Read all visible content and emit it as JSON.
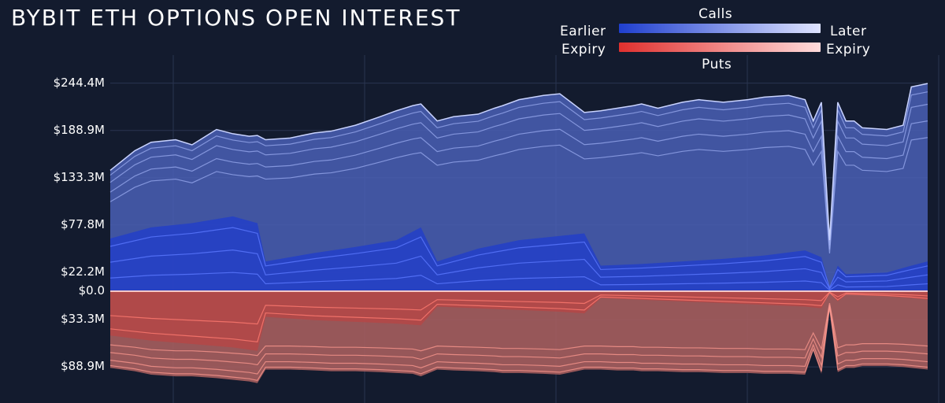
{
  "title": "BYBIT ETH OPTIONS OPEN INTEREST",
  "colors": {
    "background": "#131b2e",
    "calls_dark": "#1f3fcf",
    "calls_light": "#dfe4ff",
    "puts_dark": "#e0302e",
    "puts_light": "#ffdcdc"
  },
  "legend": {
    "calls_label": "Calls",
    "puts_label": "Puts",
    "earlier_label": "Earlier",
    "expiry_left_label": "Expiry",
    "later_label": "Later",
    "expiry_right_label": "Expiry"
  },
  "chart_data": {
    "type": "area",
    "title": "BYBIT ETH OPTIONS OPEN INTEREST",
    "y_tick_labels": [
      "$244.4M",
      "$188.9M",
      "$133.3M",
      "$77.8M",
      "$22.2M",
      "$0.0",
      "$33.3M",
      "$88.9M"
    ],
    "y_tick_values": [
      244.4,
      188.9,
      133.3,
      77.8,
      22.2,
      0.0,
      -33.3,
      -88.9
    ],
    "ylim": [
      -100,
      250
    ],
    "x_index_range": [
      0,
      100
    ],
    "calls_total": {
      "x": [
        0,
        3,
        5,
        8,
        10,
        13,
        15,
        17,
        18,
        19,
        22,
        25,
        27,
        30,
        33,
        35,
        37,
        38,
        40,
        42,
        45,
        47,
        48,
        50,
        53,
        55,
        58,
        60,
        62,
        64,
        65,
        67,
        70,
        72,
        75,
        78,
        80,
        83,
        85,
        86,
        87,
        88,
        89,
        90,
        91,
        92,
        95,
        97,
        98,
        100
      ],
      "values": [
        142,
        165,
        175,
        178,
        172,
        190,
        185,
        182,
        183,
        178,
        180,
        186,
        188,
        195,
        205,
        212,
        218,
        220,
        200,
        205,
        208,
        215,
        218,
        225,
        230,
        232,
        210,
        212,
        215,
        218,
        220,
        215,
        222,
        225,
        222,
        225,
        228,
        230,
        225,
        200,
        222,
        60,
        222,
        200,
        200,
        192,
        190,
        195,
        240,
        244
      ]
    },
    "calls_earliest": {
      "x": [
        0,
        5,
        10,
        15,
        18,
        19,
        22,
        25,
        30,
        35,
        38,
        40,
        45,
        50,
        55,
        58,
        60,
        65,
        70,
        75,
        80,
        85,
        87,
        88,
        89,
        90,
        95,
        98,
        100
      ],
      "values": [
        62,
        75,
        80,
        88,
        80,
        35,
        40,
        45,
        52,
        60,
        75,
        35,
        50,
        60,
        65,
        68,
        30,
        32,
        35,
        38,
        42,
        48,
        40,
        5,
        30,
        20,
        22,
        30,
        35
      ]
    },
    "puts_total": {
      "x": [
        0,
        3,
        5,
        8,
        10,
        13,
        15,
        17,
        18,
        19,
        22,
        25,
        27,
        30,
        33,
        35,
        37,
        38,
        40,
        42,
        45,
        47,
        48,
        50,
        53,
        55,
        58,
        60,
        62,
        64,
        65,
        67,
        70,
        72,
        75,
        78,
        80,
        83,
        85,
        86,
        87,
        88,
        89,
        90,
        91,
        92,
        95,
        97,
        98,
        100
      ],
      "values": [
        -90,
        -94,
        -98,
        -100,
        -100,
        -102,
        -104,
        -106,
        -108,
        -92,
        -92,
        -93,
        -94,
        -94,
        -95,
        -96,
        -97,
        -100,
        -92,
        -93,
        -94,
        -95,
        -96,
        -96,
        -97,
        -98,
        -92,
        -92,
        -93,
        -93,
        -94,
        -94,
        -95,
        -95,
        -96,
        -96,
        -97,
        -97,
        -98,
        -70,
        -97,
        -20,
        -95,
        -90,
        -90,
        -88,
        -88,
        -89,
        -90,
        -92
      ]
    },
    "puts_earliest": {
      "x": [
        0,
        5,
        10,
        15,
        18,
        19,
        22,
        25,
        30,
        35,
        38,
        40,
        45,
        50,
        55,
        58,
        60,
        65,
        70,
        75,
        80,
        85,
        87,
        88,
        89,
        90,
        95,
        98,
        100
      ],
      "values": [
        -52,
        -58,
        -62,
        -66,
        -70,
        -30,
        -32,
        -34,
        -36,
        -38,
        -40,
        -18,
        -20,
        -22,
        -24,
        -26,
        -8,
        -10,
        -12,
        -14,
        -16,
        -18,
        -20,
        -2,
        -12,
        -4,
        -6,
        -8,
        -10
      ]
    }
  }
}
